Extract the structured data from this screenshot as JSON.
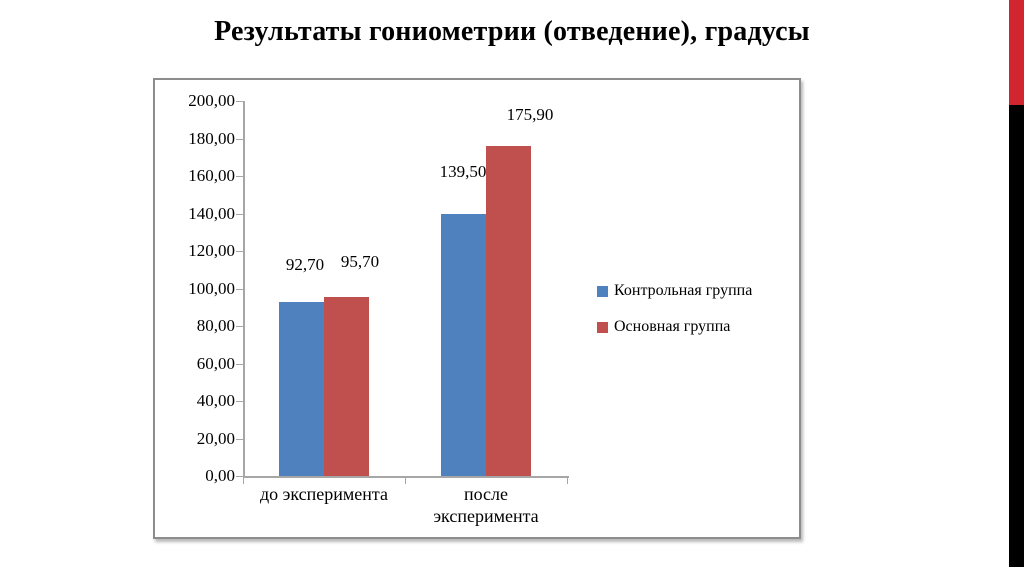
{
  "slide": {
    "title": "Результаты гониометрии (отведение), градусы"
  },
  "chart_data": {
    "type": "bar",
    "title": "Результаты гониометрии (отведение), градусы",
    "categories": [
      "до эксперимента",
      "после эксперимента"
    ],
    "series": [
      {
        "name": "Контрольная группа",
        "color": "#4e81bd",
        "values": [
          92.7,
          139.5
        ],
        "labels": [
          "92,70",
          "139,50"
        ]
      },
      {
        "name": "Основная группа",
        "color": "#c0504d",
        "values": [
          95.7,
          175.9
        ],
        "labels": [
          "95,70",
          "175,90"
        ]
      }
    ],
    "ylim": [
      0,
      200
    ],
    "ytick_step": 20,
    "ytick_labels": [
      "0,00",
      "20,00",
      "40,00",
      "60,00",
      "80,00",
      "100,00",
      "120,00",
      "140,00",
      "160,00",
      "180,00",
      "200,00"
    ],
    "grid": false,
    "legend_position": "right",
    "value_format": "comma-decimal"
  },
  "decor": {
    "strip_red": "#d12530",
    "strip_black": "#000000",
    "chart_border": "#8d8d8d",
    "axis_color": "#a6a6a6"
  }
}
